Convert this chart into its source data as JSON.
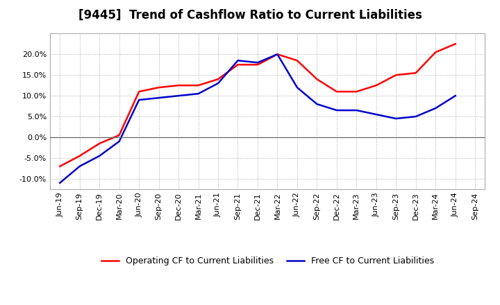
{
  "title": "[9445]  Trend of Cashflow Ratio to Current Liabilities",
  "x_labels": [
    "Jun-19",
    "Sep-19",
    "Dec-19",
    "Mar-20",
    "Jun-20",
    "Sep-20",
    "Dec-20",
    "Mar-21",
    "Jun-21",
    "Sep-21",
    "Dec-21",
    "Mar-22",
    "Jun-22",
    "Sep-22",
    "Dec-22",
    "Mar-23",
    "Jun-23",
    "Sep-23",
    "Dec-23",
    "Mar-24",
    "Jun-24",
    "Sep-24"
  ],
  "operating_cf": [
    -7.0,
    -4.5,
    -1.5,
    0.5,
    11.0,
    12.0,
    12.5,
    12.5,
    14.0,
    17.5,
    17.5,
    20.0,
    18.5,
    14.0,
    11.0,
    11.0,
    12.5,
    15.0,
    15.5,
    20.5,
    22.5,
    null
  ],
  "free_cf": [
    -11.0,
    -7.0,
    -4.5,
    -1.0,
    9.0,
    9.5,
    10.0,
    10.5,
    13.0,
    18.5,
    18.0,
    20.0,
    12.0,
    8.0,
    6.5,
    6.5,
    5.5,
    4.5,
    5.0,
    7.0,
    10.0,
    null
  ],
  "operating_color": "#ff0000",
  "free_color": "#0000cc",
  "ylim": [
    -12.5,
    25.0
  ],
  "yticks": [
    -10.0,
    -5.0,
    0.0,
    5.0,
    10.0,
    15.0,
    20.0
  ],
  "grid_color": "#aaaaaa",
  "background_color": "#ffffff",
  "legend_op": "Operating CF to Current Liabilities",
  "legend_free": "Free CF to Current Liabilities",
  "title_fontsize": 12,
  "axis_fontsize": 8,
  "legend_fontsize": 9
}
